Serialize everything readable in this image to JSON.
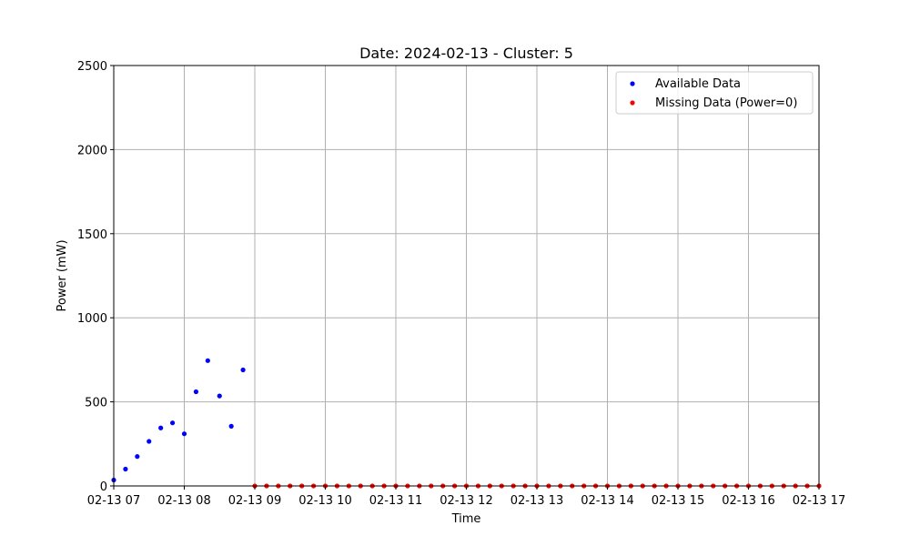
{
  "chart_data": {
    "type": "scatter",
    "title": "Date: 2024-02-13 - Cluster: 5",
    "xlabel": "Time",
    "ylabel": "Power (mW)",
    "xlim": [
      "2024-02-13 07:00",
      "2024-02-13 17:00"
    ],
    "ylim": [
      0,
      2500
    ],
    "x_ticks": [
      "02-13 07",
      "02-13 08",
      "02-13 09",
      "02-13 10",
      "02-13 11",
      "02-13 12",
      "02-13 13",
      "02-13 14",
      "02-13 15",
      "02-13 16",
      "02-13 17"
    ],
    "y_ticks": [
      0,
      500,
      1000,
      1500,
      2000,
      2500
    ],
    "grid": true,
    "legend_position": "top-right",
    "series": [
      {
        "name": "Available Data",
        "color": "#0000ff",
        "points": [
          {
            "x": "2024-02-13 07:00",
            "y": 35
          },
          {
            "x": "2024-02-13 07:10",
            "y": 100
          },
          {
            "x": "2024-02-13 07:20",
            "y": 175
          },
          {
            "x": "2024-02-13 07:30",
            "y": 265
          },
          {
            "x": "2024-02-13 07:40",
            "y": 345
          },
          {
            "x": "2024-02-13 07:50",
            "y": 375
          },
          {
            "x": "2024-02-13 08:00",
            "y": 310
          },
          {
            "x": "2024-02-13 08:10",
            "y": 560
          },
          {
            "x": "2024-02-13 08:20",
            "y": 745
          },
          {
            "x": "2024-02-13 08:30",
            "y": 535
          },
          {
            "x": "2024-02-13 08:40",
            "y": 355
          },
          {
            "x": "2024-02-13 08:50",
            "y": 690
          }
        ]
      },
      {
        "name": "Missing Data (Power=0)",
        "color": "#ff0000",
        "points": [
          {
            "x": "2024-02-13 09:00",
            "y": 0
          },
          {
            "x": "2024-02-13 09:10",
            "y": 0
          },
          {
            "x": "2024-02-13 09:20",
            "y": 0
          },
          {
            "x": "2024-02-13 09:30",
            "y": 0
          },
          {
            "x": "2024-02-13 09:40",
            "y": 0
          },
          {
            "x": "2024-02-13 09:50",
            "y": 0
          },
          {
            "x": "2024-02-13 10:00",
            "y": 0
          },
          {
            "x": "2024-02-13 10:10",
            "y": 0
          },
          {
            "x": "2024-02-13 10:20",
            "y": 0
          },
          {
            "x": "2024-02-13 10:30",
            "y": 0
          },
          {
            "x": "2024-02-13 10:40",
            "y": 0
          },
          {
            "x": "2024-02-13 10:50",
            "y": 0
          },
          {
            "x": "2024-02-13 11:00",
            "y": 0
          },
          {
            "x": "2024-02-13 11:10",
            "y": 0
          },
          {
            "x": "2024-02-13 11:20",
            "y": 0
          },
          {
            "x": "2024-02-13 11:30",
            "y": 0
          },
          {
            "x": "2024-02-13 11:40",
            "y": 0
          },
          {
            "x": "2024-02-13 11:50",
            "y": 0
          },
          {
            "x": "2024-02-13 12:00",
            "y": 0
          },
          {
            "x": "2024-02-13 12:10",
            "y": 0
          },
          {
            "x": "2024-02-13 12:20",
            "y": 0
          },
          {
            "x": "2024-02-13 12:30",
            "y": 0
          },
          {
            "x": "2024-02-13 12:40",
            "y": 0
          },
          {
            "x": "2024-02-13 12:50",
            "y": 0
          },
          {
            "x": "2024-02-13 13:00",
            "y": 0
          },
          {
            "x": "2024-02-13 13:10",
            "y": 0
          },
          {
            "x": "2024-02-13 13:20",
            "y": 0
          },
          {
            "x": "2024-02-13 13:30",
            "y": 0
          },
          {
            "x": "2024-02-13 13:40",
            "y": 0
          },
          {
            "x": "2024-02-13 13:50",
            "y": 0
          },
          {
            "x": "2024-02-13 14:00",
            "y": 0
          },
          {
            "x": "2024-02-13 14:10",
            "y": 0
          },
          {
            "x": "2024-02-13 14:20",
            "y": 0
          },
          {
            "x": "2024-02-13 14:30",
            "y": 0
          },
          {
            "x": "2024-02-13 14:40",
            "y": 0
          },
          {
            "x": "2024-02-13 14:50",
            "y": 0
          },
          {
            "x": "2024-02-13 15:00",
            "y": 0
          },
          {
            "x": "2024-02-13 15:10",
            "y": 0
          },
          {
            "x": "2024-02-13 15:20",
            "y": 0
          },
          {
            "x": "2024-02-13 15:30",
            "y": 0
          },
          {
            "x": "2024-02-13 15:40",
            "y": 0
          },
          {
            "x": "2024-02-13 15:50",
            "y": 0
          },
          {
            "x": "2024-02-13 16:00",
            "y": 0
          },
          {
            "x": "2024-02-13 16:10",
            "y": 0
          },
          {
            "x": "2024-02-13 16:20",
            "y": 0
          },
          {
            "x": "2024-02-13 16:30",
            "y": 0
          },
          {
            "x": "2024-02-13 16:40",
            "y": 0
          },
          {
            "x": "2024-02-13 16:50",
            "y": 0
          },
          {
            "x": "2024-02-13 17:00",
            "y": 0
          }
        ]
      }
    ]
  }
}
